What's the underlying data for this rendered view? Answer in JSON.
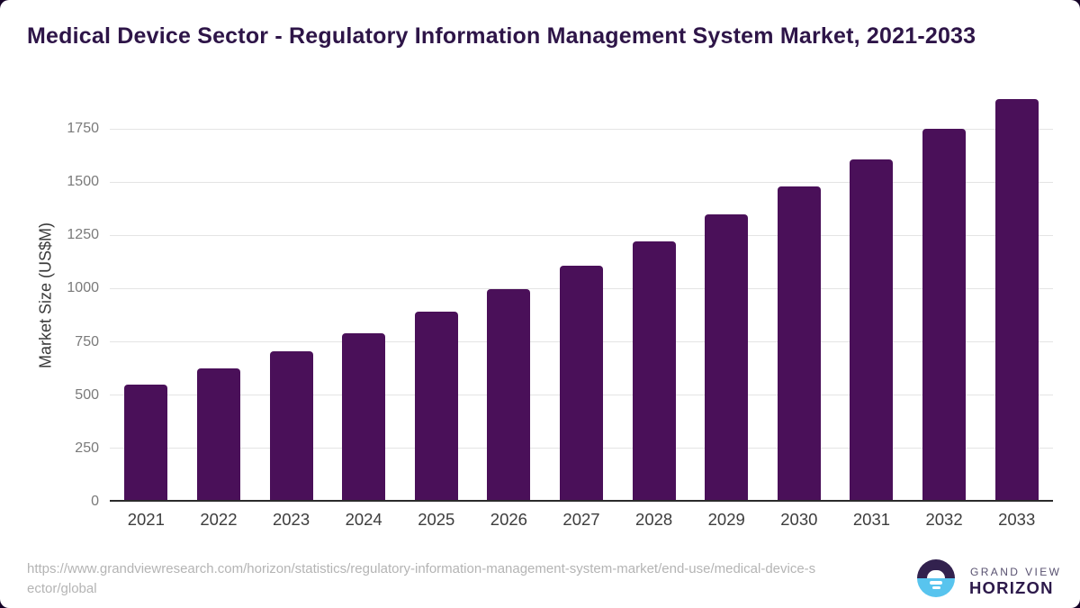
{
  "page": {
    "background_color": "#150327",
    "card_color": "#ffffff"
  },
  "header": {
    "title": "Medical Device Sector - Regulatory Information Management System Market, 2021-2033"
  },
  "chart_data": {
    "type": "bar",
    "title": "Medical Device Sector - Regulatory Information Management System Market, 2021-2033",
    "categories": [
      "2021",
      "2022",
      "2023",
      "2024",
      "2025",
      "2026",
      "2027",
      "2028",
      "2029",
      "2030",
      "2031",
      "2032",
      "2033"
    ],
    "values": [
      545,
      621,
      702,
      787,
      888,
      994,
      1103,
      1219,
      1344,
      1475,
      1604,
      1744,
      1884
    ],
    "xlabel": "",
    "ylabel": "Market Size (US$M)",
    "yticks": [
      0,
      250,
      500,
      750,
      1000,
      1250,
      1500,
      1750
    ],
    "ylim": [
      0,
      1932
    ],
    "grid": true,
    "legend": false,
    "bar_color": "#4a1059",
    "gridline_color": "#e4e4e4",
    "axis_line_color": "#2b2b2b",
    "ytick_color": "#7a7a7a",
    "xtick_color": "#3d3d3d",
    "ylabel_color": "#3a3a3a",
    "title_color": "#2e1548"
  },
  "footer": {
    "source_lines": [
      "https://www.grandviewresearch.com/horizon/statistics/regulatory-information-management-system-market/end-use/medical-device-s",
      "ector/global"
    ]
  },
  "logo": {
    "top_text": "GRAND VIEW",
    "bottom_text": "HORIZON",
    "icon_top_color": "#32214e",
    "icon_bottom_color": "#58c4ee"
  }
}
